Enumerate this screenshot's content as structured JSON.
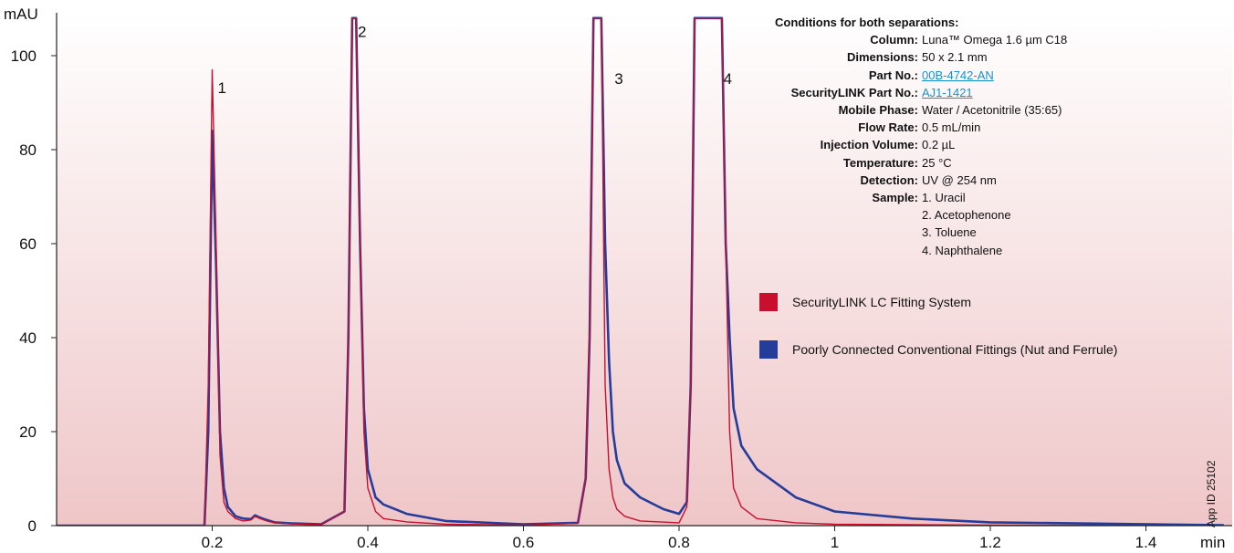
{
  "chart_data": {
    "type": "line",
    "xlabel": "min",
    "ylabel": "mAU",
    "xlim": [
      0,
      1.5
    ],
    "ylim": [
      0,
      108
    ],
    "x_ticks": [
      0.2,
      0.4,
      0.6,
      0.8,
      1,
      1.2,
      1.4
    ],
    "y_ticks": [
      0,
      20,
      40,
      60,
      80,
      100
    ],
    "background": "gradient light-to-pink",
    "peak_labels": [
      {
        "label": "1",
        "x": 0.2,
        "y": 92
      },
      {
        "label": "2",
        "x": 0.38,
        "y": 104
      },
      {
        "label": "3",
        "x": 0.71,
        "y": 94
      },
      {
        "label": "4",
        "x": 0.85,
        "y": 94
      }
    ],
    "series": [
      {
        "name": "SecurityLINK LC Fitting System",
        "color": "#c8102e",
        "x": [
          0.0,
          0.19,
          0.195,
          0.2,
          0.205,
          0.21,
          0.215,
          0.22,
          0.23,
          0.24,
          0.25,
          0.255,
          0.26,
          0.27,
          0.28,
          0.3,
          0.34,
          0.37,
          0.375,
          0.38,
          0.385,
          0.39,
          0.395,
          0.4,
          0.41,
          0.42,
          0.45,
          0.5,
          0.6,
          0.67,
          0.68,
          0.685,
          0.69,
          0.7,
          0.705,
          0.71,
          0.715,
          0.72,
          0.73,
          0.75,
          0.8,
          0.81,
          0.815,
          0.82,
          0.825,
          0.83,
          0.855,
          0.86,
          0.865,
          0.87,
          0.88,
          0.9,
          0.95,
          1.0,
          1.2,
          1.5
        ],
        "y": [
          0.0,
          0.0,
          30.0,
          97.0,
          60.0,
          15.0,
          5.0,
          3.0,
          1.5,
          1.0,
          1.2,
          2.0,
          1.6,
          1.0,
          0.6,
          0.4,
          0.2,
          3.0,
          40.0,
          108,
          108,
          60.0,
          20.0,
          8.0,
          3.0,
          1.5,
          0.8,
          0.3,
          0.1,
          0.5,
          10.0,
          40.0,
          108,
          108,
          30.0,
          12.0,
          6.0,
          3.5,
          2.0,
          1.0,
          0.6,
          4.0,
          30.0,
          108,
          108,
          108,
          108,
          60.0,
          20.0,
          8.0,
          4.0,
          1.5,
          0.6,
          0.3,
          0.1,
          0.0
        ]
      },
      {
        "name": "Poorly Connected Conventional Fittings (Nut and Ferrule)",
        "color": "#243c9a",
        "x": [
          0.0,
          0.19,
          0.195,
          0.2,
          0.205,
          0.21,
          0.215,
          0.22,
          0.23,
          0.24,
          0.25,
          0.255,
          0.26,
          0.27,
          0.28,
          0.3,
          0.34,
          0.37,
          0.375,
          0.38,
          0.385,
          0.39,
          0.395,
          0.4,
          0.41,
          0.42,
          0.45,
          0.5,
          0.6,
          0.67,
          0.68,
          0.685,
          0.69,
          0.7,
          0.705,
          0.71,
          0.715,
          0.72,
          0.73,
          0.75,
          0.78,
          0.8,
          0.81,
          0.815,
          0.82,
          0.825,
          0.83,
          0.855,
          0.86,
          0.865,
          0.87,
          0.88,
          0.9,
          0.95,
          1.0,
          1.1,
          1.2,
          1.5
        ],
        "y": [
          0.0,
          0.0,
          20.0,
          84.0,
          55.0,
          20.0,
          8.0,
          4.0,
          2.0,
          1.5,
          1.4,
          2.2,
          1.8,
          1.2,
          0.7,
          0.5,
          0.3,
          3.0,
          40.0,
          108,
          108,
          60.0,
          25.0,
          12.0,
          6.0,
          4.5,
          2.5,
          1.0,
          0.3,
          0.6,
          10.0,
          40.0,
          108,
          108,
          60.0,
          35.0,
          20.0,
          14.0,
          9.0,
          6.0,
          3.5,
          2.5,
          5.0,
          30.0,
          108,
          108,
          108,
          108,
          60.0,
          40.0,
          25.0,
          17.0,
          12.0,
          6.0,
          3.0,
          1.5,
          0.7,
          0.1
        ]
      }
    ],
    "app_id": "App ID 25102"
  },
  "conditions": {
    "heading": "Conditions for both separations:",
    "rows": [
      {
        "key": "Column:",
        "value": "Luna™ Omega 1.6 µm C18",
        "link": false
      },
      {
        "key": "Dimensions:",
        "value": "50 x 2.1 mm",
        "link": false
      },
      {
        "key": "Part No.:",
        "value": "00B-4742-AN",
        "link": true
      },
      {
        "key": "SecurityLINK Part No.:",
        "value": "AJ1-1421",
        "link": true
      },
      {
        "key": "Mobile Phase:",
        "value": "Water / Acetonitrile (35:65)",
        "link": false
      },
      {
        "key": "Flow Rate:",
        "value": "0.5 mL/min",
        "link": false
      },
      {
        "key": "Injection Volume:",
        "value": "0.2 µL",
        "link": false
      },
      {
        "key": "Temperature:",
        "value": "25 °C",
        "link": false
      },
      {
        "key": "Detection:",
        "value": "UV @ 254 nm",
        "link": false
      },
      {
        "key": "Sample:",
        "value": "1. Uracil",
        "link": false
      }
    ],
    "sample_extra": [
      "2. Acetophenone",
      "3. Toluene",
      "4. Naphthalene"
    ]
  },
  "legend": [
    {
      "label": "SecurityLINK LC Fitting System",
      "color": "#c8102e"
    },
    {
      "label": "Poorly Connected Conventional Fittings (Nut and Ferrule)",
      "color": "#243c9a"
    }
  ]
}
